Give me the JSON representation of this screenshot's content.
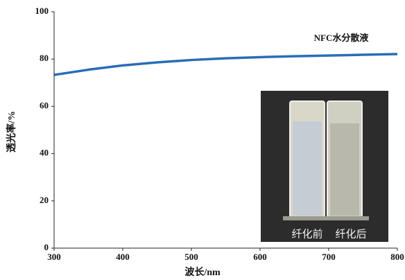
{
  "chart_data": {
    "type": "line",
    "x": [
      300,
      350,
      400,
      450,
      500,
      550,
      600,
      650,
      700,
      750,
      800
    ],
    "series": [
      {
        "name": "NFC水分散液",
        "color": "#2a6cb8",
        "values": [
          73.3,
          75.5,
          77.3,
          78.6,
          79.6,
          80.3,
          80.8,
          81.2,
          81.5,
          81.8,
          82.1
        ]
      }
    ],
    "xlabel": "波长/nm",
    "ylabel": "透光率/%",
    "xlim": [
      300,
      800
    ],
    "xticks": [
      300,
      400,
      500,
      600,
      700,
      800
    ],
    "ylim": [
      0,
      100
    ],
    "yticks": [
      0,
      20,
      40,
      60,
      80,
      100
    ],
    "grid": false,
    "inset_labels": [
      "纤化前",
      "纤化后"
    ]
  }
}
